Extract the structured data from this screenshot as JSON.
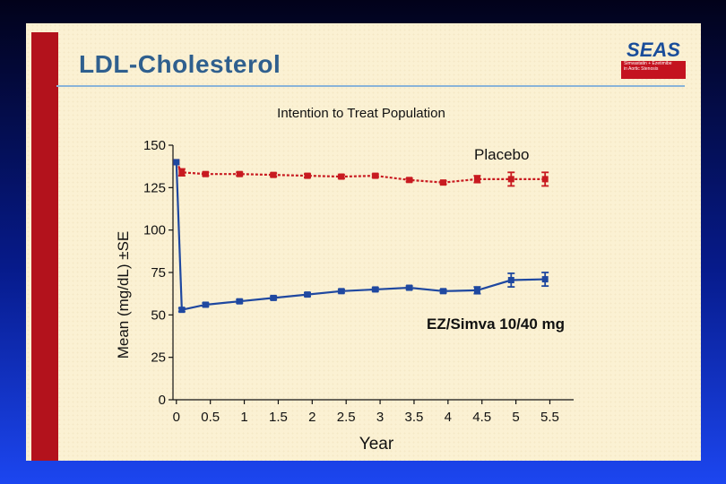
{
  "slide": {
    "title": "LDL-Cholesterol",
    "logo": {
      "text": "SEAS",
      "lines": [
        "Simvastatin + Ezetimibe",
        "in Aortic Stenosis"
      ]
    }
  },
  "colors": {
    "placebo": "#c81a20",
    "ez": "#1f48a0",
    "slide_bg": "#fbf1d3",
    "accent_bar": "#b3121c",
    "title": "#2f5f8e"
  },
  "chart_data": {
    "type": "line",
    "title": "Intention to Treat Population",
    "xlabel": "Year",
    "ylabel": "Mean (mg/dL) ±SE",
    "xlim": [
      -0.05,
      5.85
    ],
    "ylim": [
      0,
      150
    ],
    "x_ticks": [
      0,
      0.5,
      1,
      1.5,
      2,
      2.5,
      3,
      3.5,
      4,
      4.5,
      5,
      5.5
    ],
    "x_tick_labels": [
      "0",
      "0.5",
      "1",
      "1.5",
      "2",
      "2.5",
      "3",
      "3.5",
      "4",
      "4.5",
      "5",
      "5.5"
    ],
    "y_ticks": [
      0,
      25,
      50,
      75,
      100,
      125,
      150
    ],
    "series": [
      {
        "name": "Placebo",
        "label": "Placebo",
        "color": "#c81a20",
        "dashed": true,
        "x": [
          0,
          0.08,
          0.43,
          0.93,
          1.43,
          1.93,
          2.43,
          2.93,
          3.43,
          3.93,
          4.43,
          4.93,
          5.43
        ],
        "y": [
          140,
          134,
          133,
          133,
          132.5,
          132,
          131.5,
          132,
          129.5,
          128,
          130,
          130,
          130
        ],
        "err": [
          0,
          2,
          1,
          1,
          1,
          1,
          1,
          1,
          1,
          1,
          2,
          4,
          4
        ]
      },
      {
        "name": "EZ/Simva 10/40 mg",
        "label": "EZ/Simva 10/40 mg",
        "color": "#1f48a0",
        "dashed": false,
        "x": [
          0,
          0.08,
          0.43,
          0.93,
          1.43,
          1.93,
          2.43,
          2.93,
          3.43,
          3.93,
          4.43,
          4.93,
          5.43
        ],
        "y": [
          140,
          53,
          56,
          58,
          60,
          62,
          64,
          65,
          66,
          64,
          64.5,
          70.5,
          71
        ],
        "err": [
          0,
          1,
          1,
          1,
          1,
          1,
          1,
          1,
          1,
          1,
          2,
          4,
          4
        ]
      }
    ]
  }
}
